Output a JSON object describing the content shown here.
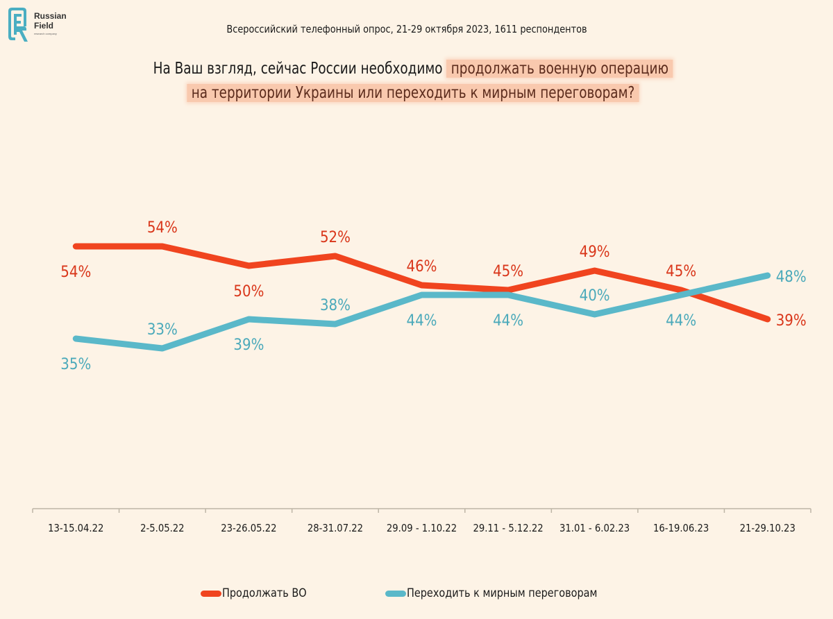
{
  "logo": {
    "name_line1": "Russian",
    "name_line2": "Field",
    "tagline": "research company"
  },
  "header": {
    "subtitle": "Всероссийский телефонный опрос, 21-29 октября 2023, 1611 респондентов",
    "title_plain": "На Ваш взгляд, сейчас России необходимо ",
    "title_highlight_1": "продолжать военную операцию",
    "title_highlight_2": "на территории Украины или переходить к мирным переговорам?"
  },
  "colors": {
    "background": "#fdf3e6",
    "continue": "#f0441f",
    "negotiate": "#5ab8c9",
    "continue_label": "#d9361a",
    "negotiate_label": "#4aa9ba",
    "highlight": "#f9c9ae"
  },
  "chart_data": {
    "type": "line",
    "title": "На Ваш взгляд, сейчас России необходимо продолжать военную операцию на территории Украины или переходить к мирным переговорам?",
    "subtitle": "Всероссийский телефонный опрос, 21-29 октября 2023, 1611 респондентов",
    "xlabel": "",
    "ylabel": "",
    "ylim": [
      0,
      100
    ],
    "grid": false,
    "legend_position": "bottom",
    "value_suffix": "%",
    "categories": [
      "13-15.04.22",
      "2-5.05.22",
      "23-26.05.22",
      "28-31.07.22",
      "29.09 - 1.10.22",
      "29.11 - 5.12.22",
      "31.01 - 6.02.23",
      "16-19.06.23",
      "21-29.10.23"
    ],
    "series": [
      {
        "name": "Продолжать ВО",
        "color": "#f0441f",
        "values": [
          54,
          54,
          50,
          52,
          46,
          45,
          49,
          45,
          39
        ],
        "label_positions": [
          "below",
          "above",
          "below",
          "above",
          "above",
          "above",
          "above",
          "above",
          "right"
        ]
      },
      {
        "name": "Переходить к мирным переговорам",
        "color": "#5ab8c9",
        "values": [
          35,
          33,
          39,
          38,
          44,
          44,
          40,
          44,
          48
        ],
        "label_positions": [
          "below",
          "above",
          "below",
          "above",
          "below",
          "below",
          "above",
          "below",
          "right"
        ]
      }
    ]
  }
}
